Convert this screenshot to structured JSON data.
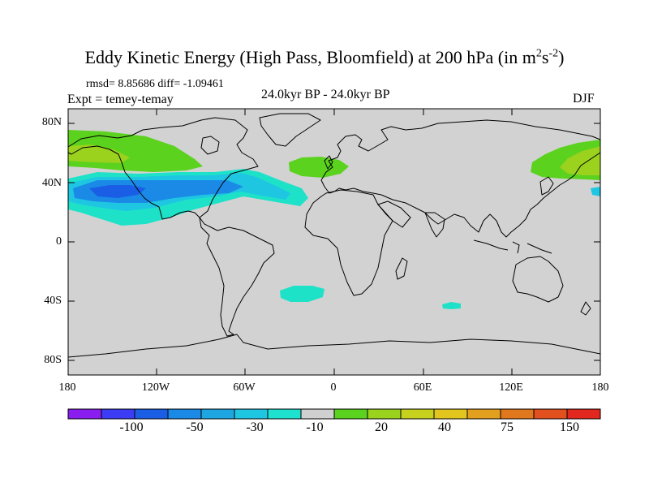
{
  "title": {
    "main": "Eddy Kinetic Energy (High Pass, Bloomfield) at 200 hPa (in m",
    "exp1": "2",
    "mid": "s",
    "exp2": "-2",
    "close": ")"
  },
  "stats": "rmsd= 8.85686 diff= -1.09461",
  "experiment": "Expt = temey-temay",
  "period": "24.0kyr BP - 24.0kyr BP",
  "season": "DJF",
  "lat_labels": [
    "80N",
    "40N",
    "0",
    "40S",
    "80S"
  ],
  "lon_labels": [
    "180",
    "120W",
    "60W",
    "0",
    "60E",
    "120E",
    "180"
  ],
  "colorbar": {
    "colors": [
      "#8a1ef0",
      "#3c3cf5",
      "#1a5ee6",
      "#1a8ae6",
      "#1ea6e2",
      "#1ec6e2",
      "#1ee2d0",
      "#d0d0d0",
      "#5ad21e",
      "#9ad21e",
      "#c6d21e",
      "#e2c61e",
      "#e2a01e",
      "#e2781e",
      "#e2501e",
      "#e2281e"
    ],
    "labels": [
      "-100",
      "-50",
      "-30",
      "-10",
      "20",
      "40",
      "75",
      "150"
    ]
  },
  "colors": {
    "ocean_land": "#d2d2d2",
    "coast": "#000000",
    "green": "#5ad21e",
    "lightgreen": "#9ad21e",
    "cyan": "#1ee2c8",
    "lightblue": "#1ec6e2",
    "blue": "#1a8ae6",
    "darkblue": "#1a5ee6"
  }
}
